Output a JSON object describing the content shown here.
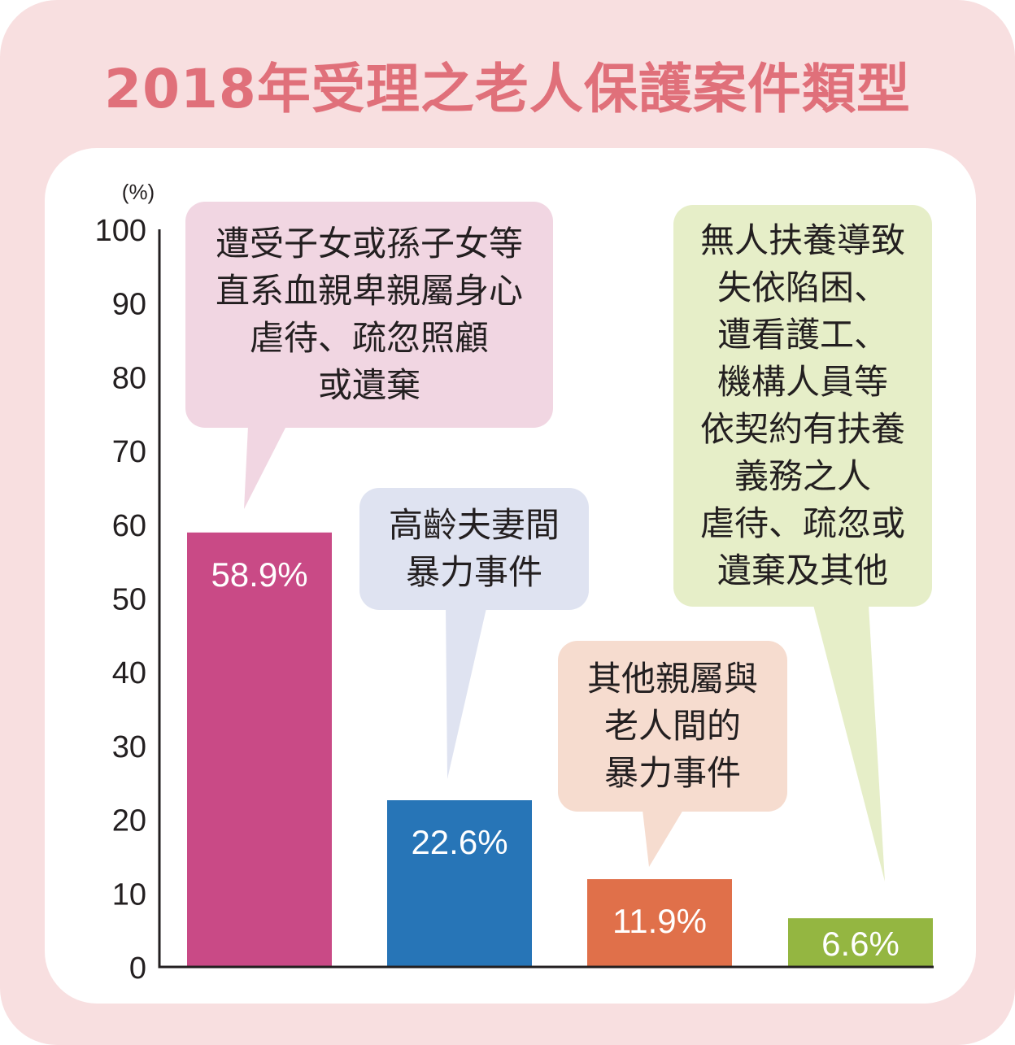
{
  "title": "2018年受理之老人保護案件類型",
  "chart_data": {
    "type": "bar",
    "title": "2018年受理之老人保護案件類型",
    "unit_label": "(%)",
    "ylim": [
      0,
      100
    ],
    "yticks": [
      0,
      10,
      20,
      30,
      40,
      50,
      60,
      70,
      80,
      90,
      100
    ],
    "categories": [
      "遭受子女或孫子女等\n直系血親卑親屬身心\n虐待、疏忽照顧\n或遺棄",
      "高齡夫妻間\n暴力事件",
      "其他親屬與\n老人間的\n暴力事件",
      "無人扶養導致\n失依陷困、\n遭看護工、\n機構人員等\n依契約有扶養\n義務之人\n虐待、疏忽或\n遺棄及其他"
    ],
    "values": [
      58.9,
      22.6,
      11.9,
      6.6
    ],
    "value_labels": [
      "58.9%",
      "22.6%",
      "11.9%",
      "6.6%"
    ],
    "bar_colors": [
      "#c94a86",
      "#2775b7",
      "#e0704a",
      "#94b641"
    ],
    "bubble_colors": [
      "#f1d6e2",
      "#dfe3f1",
      "#f6dccf",
      "#e6eec8"
    ],
    "grid": false,
    "legend": "none"
  }
}
